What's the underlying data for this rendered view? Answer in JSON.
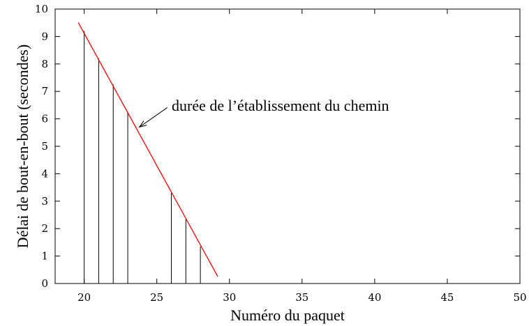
{
  "chart_data": {
    "type": "scatter",
    "title": "",
    "xlabel": "Numéro du paquet",
    "ylabel": "Délai de bout-en-bout (secondes)",
    "xlim": [
      18,
      50
    ],
    "ylim": [
      0,
      10
    ],
    "xticks": [
      20,
      25,
      30,
      35,
      40,
      45,
      50
    ],
    "yticks": [
      0,
      1,
      2,
      3,
      4,
      5,
      6,
      7,
      8,
      9,
      10
    ],
    "grid": false,
    "colors": {
      "impulses": "#000000",
      "trend_line": "#ff0000",
      "axes": "#000000"
    },
    "series": [
      {
        "style": "impulses",
        "x": [
          20,
          21,
          22,
          23,
          26,
          27,
          28
        ],
        "y": [
          9.2,
          8.2,
          7.25,
          6.25,
          3.3,
          2.35,
          1.35
        ]
      }
    ],
    "trend_line": {
      "x": [
        19.6,
        29.2
      ],
      "y": [
        9.5,
        0.25
      ]
    },
    "annotation": {
      "text": "durée de l’établissement du chemin",
      "points_to": {
        "x": 23.8,
        "y": 5.7
      }
    }
  }
}
